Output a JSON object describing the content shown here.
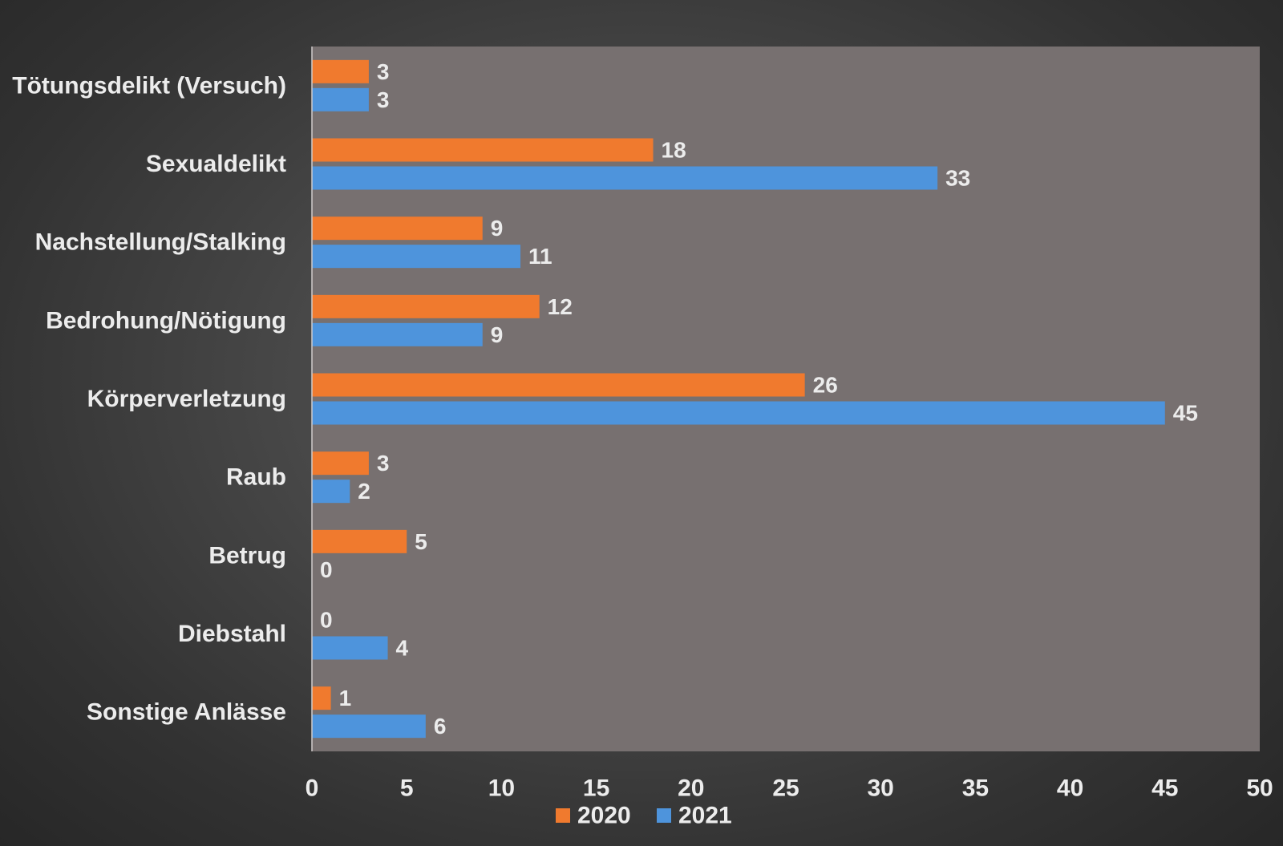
{
  "chart_data": {
    "type": "bar",
    "orientation": "horizontal",
    "categories": [
      "Tötungsdelikt (Versuch)",
      "Sexualdelikt",
      "Nachstellung/Stalking",
      "Bedrohung/Nötigung",
      "Körperverletzung",
      "Raub",
      "Betrug",
      "Diebstahl",
      "Sonstige Anlässe"
    ],
    "series": [
      {
        "name": "2020",
        "color": "#f07a2e",
        "values": [
          3,
          18,
          9,
          12,
          26,
          3,
          5,
          0,
          1
        ]
      },
      {
        "name": "2021",
        "color": "#4e94dc",
        "values": [
          3,
          33,
          11,
          9,
          45,
          2,
          0,
          4,
          6
        ]
      }
    ],
    "xlim": [
      0,
      50
    ],
    "xticks": [
      "0",
      "5",
      "10",
      "15",
      "20",
      "25",
      "30",
      "35",
      "40",
      "45",
      "50"
    ],
    "title": "",
    "xlabel": "",
    "ylabel": "",
    "grid": false,
    "legend_position": "bottom",
    "plot_background": "#777070",
    "data_labels": true
  }
}
